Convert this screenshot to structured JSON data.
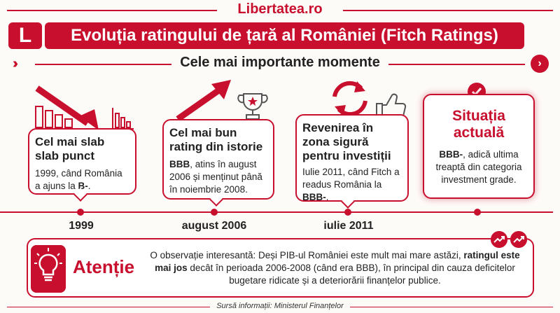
{
  "brand": "Libertatea.ro",
  "logo_letter": "L",
  "title": "Evoluția ratingului de țară al României (Fitch Ratings)",
  "subtitle": "Cele mai importante momente",
  "colors": {
    "accent": "#c8102e",
    "background": "#fdfbf8",
    "text": "#222222"
  },
  "moments": [
    {
      "head": "Cel mai slab slab punct",
      "body_pre": "1999, când România a ajuns la ",
      "body_bold": "B-",
      "body_post": ".",
      "year": "1999",
      "icon": "falling-bars-arrow-icon"
    },
    {
      "head": "Cel mai bun rating din istorie",
      "body_bold": "BBB",
      "body_post": ", atins în august 2006 și menținut până în noiembrie 2008.",
      "year": "august 2006",
      "icon": "rising-arrow-trophy-icon"
    },
    {
      "head": "Revenirea în zona sigură pentru investiții",
      "body_pre": "Iulie 2011, când Fitch a readus România la ",
      "body_bold": "BBB-",
      "body_post": ".",
      "year": "iulie 2011",
      "icon": "refresh-thumbs-up-icon"
    },
    {
      "head": "Situația actuală",
      "body_bold": "BBB-",
      "body_post": ", adică ultima treaptă din categoria investment grade.",
      "icon": "checkmark-badge-icon"
    }
  ],
  "note": {
    "title": "Atenție",
    "text_pre": "O observație interesantă: Deși PIB-ul României este mult mai mare astăzi, ",
    "text_bold": "ratingul este mai jos",
    "text_post": " decât în perioada 2006-2008 (când era BBB), în principal din cauza deficitelor bugetare ridicate și a deteriorării finanțelor publice.",
    "icon": "lightbulb-icon"
  },
  "source": "Sursă informații: Ministerul Finanțelor"
}
